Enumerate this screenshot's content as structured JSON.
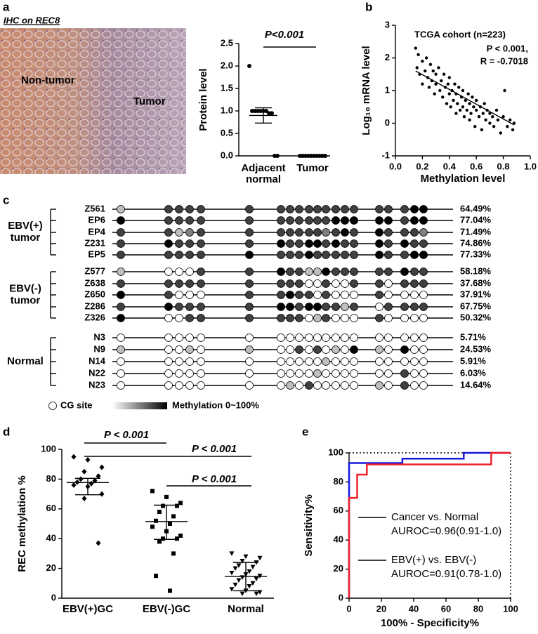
{
  "chart_data": [
    {
      "type": "image",
      "panel": "a",
      "title": "IHC on REC8",
      "annotations": [
        "Non-tumor",
        "Tumor"
      ]
    },
    {
      "type": "dot",
      "ylabel": "Protein level",
      "categories": [
        [
          "Adjacent",
          "normal"
        ],
        [
          "Tumor"
        ]
      ],
      "values": [
        [
          2.0,
          1.0,
          1.0,
          1.0,
          1.0,
          1.0,
          1.0,
          0.95,
          0.95,
          0,
          0
        ],
        [
          0,
          0,
          0,
          0,
          0,
          0,
          0,
          0,
          0,
          0
        ]
      ],
      "markers": [
        "circle",
        "circle"
      ],
      "color": "#000000",
      "center": [
        0.9,
        0
      ],
      "low": [
        0.73,
        0
      ],
      "high": [
        1.07,
        0
      ],
      "annotations": [
        "P<0.001"
      ],
      "ylim": [
        0,
        2.5
      ],
      "yticks": [
        {
          "value": 0,
          "label": "0.0"
        },
        0.5,
        {
          "value": 1,
          "label": "1.0"
        },
        1.5,
        {
          "value": 2,
          "label": "2.0"
        },
        2.5
      ]
    },
    {
      "type": "scatter",
      "panel": "b",
      "title": "TCGA cohort (n=223)",
      "annotations": [
        "P < 0.001,",
        "R = -0.7018"
      ],
      "xlabel": "Methylation level",
      "ylabel": "Log₁₀ mRNA level",
      "color": "#000000",
      "x": [
        0.15,
        0.17,
        0.16,
        0.18,
        0.2,
        0.2,
        0.22,
        0.23,
        0.24,
        0.25,
        0.26,
        0.27,
        0.28,
        0.29,
        0.3,
        0.3,
        0.32,
        0.33,
        0.34,
        0.35,
        0.36,
        0.37,
        0.38,
        0.39,
        0.4,
        0.4,
        0.41,
        0.42,
        0.43,
        0.44,
        0.45,
        0.45,
        0.46,
        0.47,
        0.48,
        0.49,
        0.5,
        0.5,
        0.51,
        0.52,
        0.53,
        0.54,
        0.55,
        0.55,
        0.56,
        0.57,
        0.58,
        0.59,
        0.6,
        0.6,
        0.62,
        0.63,
        0.64,
        0.65,
        0.66,
        0.67,
        0.68,
        0.7,
        0.7,
        0.72,
        0.73,
        0.75,
        0.76,
        0.78,
        0.8,
        0.81,
        0.83,
        0.85,
        0.87,
        0.88
      ],
      "y": [
        2.3,
        2.1,
        1.7,
        1.5,
        1.9,
        1.2,
        1.6,
        2.0,
        1.4,
        1.1,
        1.8,
        1.3,
        1.6,
        0.9,
        1.5,
        1.2,
        1.7,
        1.0,
        1.3,
        0.8,
        1.5,
        1.1,
        0.6,
        1.2,
        0.9,
        1.4,
        0.5,
        1.0,
        0.7,
        1.2,
        0.3,
        0.9,
        0.6,
        1.1,
        0.4,
        0.8,
        0.5,
        1.0,
        0.2,
        0.7,
        0.4,
        0.9,
        0.1,
        0.6,
        0.3,
        0.8,
        0.5,
        -0.1,
        0.4,
        0.7,
        0.2,
        0.5,
        -0.2,
        0.3,
        0.6,
        0.1,
        0.4,
        0.0,
        0.3,
        0.2,
        -0.1,
        0.4,
        0.1,
        -0.3,
        0.2,
        1.0,
        -0.1,
        0.1,
        -0.2,
        0.0
      ],
      "fit": {
        "x": [
          0.15,
          0.88
        ],
        "y": [
          1.6,
          -0.05
        ]
      },
      "xlim": [
        0,
        1
      ],
      "xticks": [
        {
          "value": 0,
          "label": "0.0"
        },
        0.2,
        0.4,
        0.6,
        0.8,
        {
          "value": 1,
          "label": "1.0"
        }
      ],
      "ylim": [
        -1,
        3
      ],
      "yticks": [
        -1,
        0,
        1,
        2,
        3
      ]
    },
    {
      "type": "methylation",
      "panel": "c",
      "groups": [
        {
          "label": [
            "EBV(+)",
            "tumor"
          ],
          "samples": [
            "Z561",
            "EP6",
            "EP4",
            "Z231",
            "EP5"
          ],
          "levels": [
            [
              25,
              75,
              75,
              75,
              75,
              75,
              75,
              75,
              75,
              75,
              75,
              75,
              75,
              75,
              75,
              75,
              75,
              75,
              100,
              100
            ],
            [
              100,
              75,
              75,
              75,
              75,
              75,
              75,
              75,
              75,
              75,
              75,
              75,
              100,
              100,
              100,
              100,
              100,
              75,
              100,
              100
            ],
            [
              75,
              75,
              25,
              50,
              75,
              75,
              75,
              75,
              75,
              75,
              75,
              50,
              75,
              100,
              75,
              100,
              75,
              75,
              75,
              50
            ],
            [
              75,
              100,
              75,
              75,
              75,
              75,
              100,
              75,
              75,
              100,
              100,
              75,
              100,
              75,
              75,
              100,
              75,
              100,
              75,
              75
            ],
            [
              75,
              75,
              75,
              75,
              75,
              100,
              75,
              75,
              75,
              100,
              75,
              75,
              75,
              75,
              75,
              100,
              75,
              75,
              100,
              100
            ]
          ],
          "values": [
            64.49,
            77.04,
            71.49,
            74.86,
            77.33
          ],
          "value_labels": [
            "64.49%",
            "77.04%",
            "71.49%",
            "74.86%",
            "77.33%"
          ]
        },
        {
          "label": [
            "EBV(-)",
            "tumor"
          ],
          "samples": [
            "Z577",
            "Z638",
            "Z650",
            "Z286",
            "Z326"
          ],
          "levels": [
            [
              25,
              0,
              0,
              0,
              75,
              75,
              100,
              75,
              75,
              25,
              25,
              100,
              75,
              75,
              75,
              75,
              75,
              100,
              75,
              75
            ],
            [
              75,
              75,
              75,
              75,
              75,
              75,
              75,
              75,
              75,
              0,
              0,
              75,
              0,
              0,
              75,
              75,
              0,
              75,
              75,
              75
            ],
            [
              100,
              75,
              0,
              0,
              0,
              75,
              75,
              100,
              75,
              75,
              0,
              75,
              0,
              0,
              0,
              75,
              0,
              0,
              0,
              0
            ],
            [
              75,
              100,
              75,
              75,
              75,
              75,
              100,
              100,
              75,
              100,
              100,
              75,
              75,
              25,
              75,
              0,
              75,
              75,
              75,
              75
            ],
            [
              100,
              0,
              0,
              75,
              75,
              75,
              75,
              75,
              75,
              0,
              25,
              75,
              0,
              0,
              0,
              75,
              0,
              0,
              0,
              0
            ]
          ],
          "values": [
            58.18,
            37.68,
            37.91,
            67.75,
            50.32
          ],
          "value_labels": [
            "58.18%",
            "37.68%",
            "37.91%",
            "67.75%",
            "50.32%"
          ]
        },
        {
          "label": [
            "Normal"
          ],
          "samples": [
            "N3",
            "N9",
            "N14",
            "N22",
            "N23"
          ],
          "levels": [
            [
              0,
              0,
              0,
              0,
              0,
              0,
              0,
              0,
              0,
              0,
              0,
              0,
              0,
              0,
              0,
              0,
              0,
              0,
              0,
              0
            ],
            [
              25,
              0,
              0,
              25,
              0,
              25,
              0,
              0,
              75,
              0,
              75,
              0,
              25,
              0,
              100,
              25,
              0,
              100,
              0,
              0
            ],
            [
              0,
              0,
              0,
              0,
              0,
              0,
              0,
              0,
              0,
              0,
              0,
              25,
              0,
              0,
              0,
              0,
              0,
              0,
              0,
              0
            ],
            [
              0,
              0,
              0,
              0,
              0,
              0,
              0,
              0,
              0,
              0,
              25,
              0,
              0,
              0,
              0,
              0,
              0,
              75,
              0,
              0
            ],
            [
              0,
              0,
              0,
              0,
              0,
              0,
              0,
              25,
              0,
              75,
              0,
              0,
              0,
              0,
              0,
              25,
              0,
              75,
              0,
              0
            ]
          ],
          "values": [
            5.71,
            24.53,
            5.91,
            6.03,
            14.64
          ],
          "value_labels": [
            "5.71%",
            "24.53%",
            "5.91%",
            "6.03%",
            "14.64%"
          ]
        }
      ],
      "legend": {
        "site": "CG site",
        "scale": "Methylation 0~100%"
      }
    },
    {
      "type": "dot",
      "panel": "d",
      "ylabel": "REC methylation %",
      "categories": [
        [
          "EBV(+)GC"
        ],
        [
          "EBV(-)GC"
        ],
        [
          "Normal"
        ]
      ],
      "values": [
        [
          95,
          93,
          88,
          85,
          82,
          80,
          79,
          78,
          77,
          76,
          75,
          70,
          67,
          37
        ],
        [
          72,
          68,
          64,
          62,
          62,
          58,
          55,
          52,
          50,
          48,
          45,
          42,
          40,
          40,
          38,
          30,
          15,
          5
        ],
        [
          30,
          28,
          27,
          25,
          24,
          22,
          21,
          20,
          18,
          17,
          16,
          15,
          14,
          13,
          12,
          10,
          9,
          8,
          6,
          5,
          4,
          3,
          3
        ]
      ],
      "markers": [
        "diamond",
        "square",
        "triangle-down"
      ],
      "color": "#000000",
      "center": [
        77.7,
        51.5,
        14.6
      ],
      "low": [
        69.5,
        39.5,
        5
      ],
      "high": [
        80.5,
        62.5,
        24
      ],
      "annotations": [
        "P < 0.001",
        "P < 0.001",
        "P < 0.001"
      ],
      "ylim": [
        0,
        100
      ],
      "yticks": [
        0,
        20,
        40,
        60,
        80,
        100
      ]
    },
    {
      "type": "line",
      "panel": "e",
      "xlabel": "100% - Specificity%",
      "ylabel": "Sensitivity%",
      "xlim": [
        0,
        100
      ],
      "xticks": [
        0,
        20,
        40,
        60,
        80,
        100
      ],
      "ylim": [
        0,
        100
      ],
      "yticks": [
        0,
        20,
        40,
        60,
        80,
        100
      ],
      "series": [
        {
          "name": "Cancer vs. Normal",
          "note": "AUROC=0.96(0.91-1.0)",
          "color": "#1a1adb",
          "x": [
            0,
            0,
            33,
            33,
            71,
            71,
            100
          ],
          "values": [
            0,
            93,
            93,
            96,
            96,
            100,
            100
          ]
        },
        {
          "name": "EBV(+) vs. EBV(-)",
          "note": "AUROC=0.91(0.78-1.0)",
          "color": "#f0202a",
          "x": [
            0,
            0,
            5,
            5,
            11,
            11,
            88,
            88,
            100
          ],
          "values": [
            0,
            69,
            69,
            85,
            85,
            92,
            92,
            100,
            100
          ]
        }
      ]
    }
  ]
}
